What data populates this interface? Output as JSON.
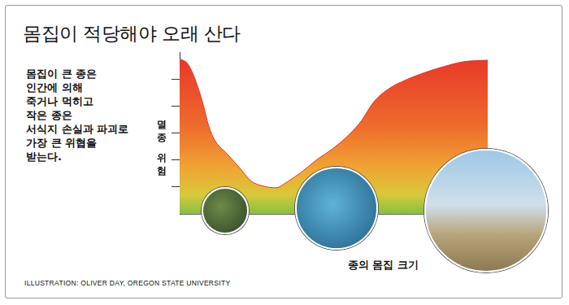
{
  "chart_data": {
    "type": "area",
    "title": "몸집이 적당해야 오래 산다",
    "annotations": [
      "몸집이 큰 종은\n인간에 의해\n죽거나 먹히고\n작은 종은\n서식지 손실과 파괴로\n가장 큰 위협을\n받는다.",
      "ILLUSTRATION: OLIVER DAY, OREGON STATE UNIVERSITY"
    ],
    "y_label": "멸종 위험",
    "x_label": "종의 몸집 크기",
    "x": [
      0,
      2.6,
      4.8,
      7.4,
      9.5,
      11.4,
      15.3,
      19.3,
      23.3,
      27.2,
      31.2,
      35.2,
      39.2,
      44.4,
      49.7,
      55.0,
      59.0,
      63.0,
      68.3,
      73.5,
      78.8,
      85.4,
      92.0,
      100
    ],
    "values": [
      5.75,
      5.57,
      5.06,
      4.15,
      3.24,
      2.73,
      2.24,
      1.73,
      1.21,
      1.03,
      0.97,
      1.21,
      1.52,
      2.0,
      2.42,
      2.94,
      3.45,
      4.15,
      4.67,
      4.97,
      5.21,
      5.45,
      5.64,
      5.7
    ],
    "xlim": [
      0,
      100
    ],
    "ylim": [
      0,
      6
    ],
    "yticks": [
      1,
      2,
      3,
      4,
      5
    ],
    "tick_labels": false,
    "grid": false,
    "color": "#e8332a"
  }
}
